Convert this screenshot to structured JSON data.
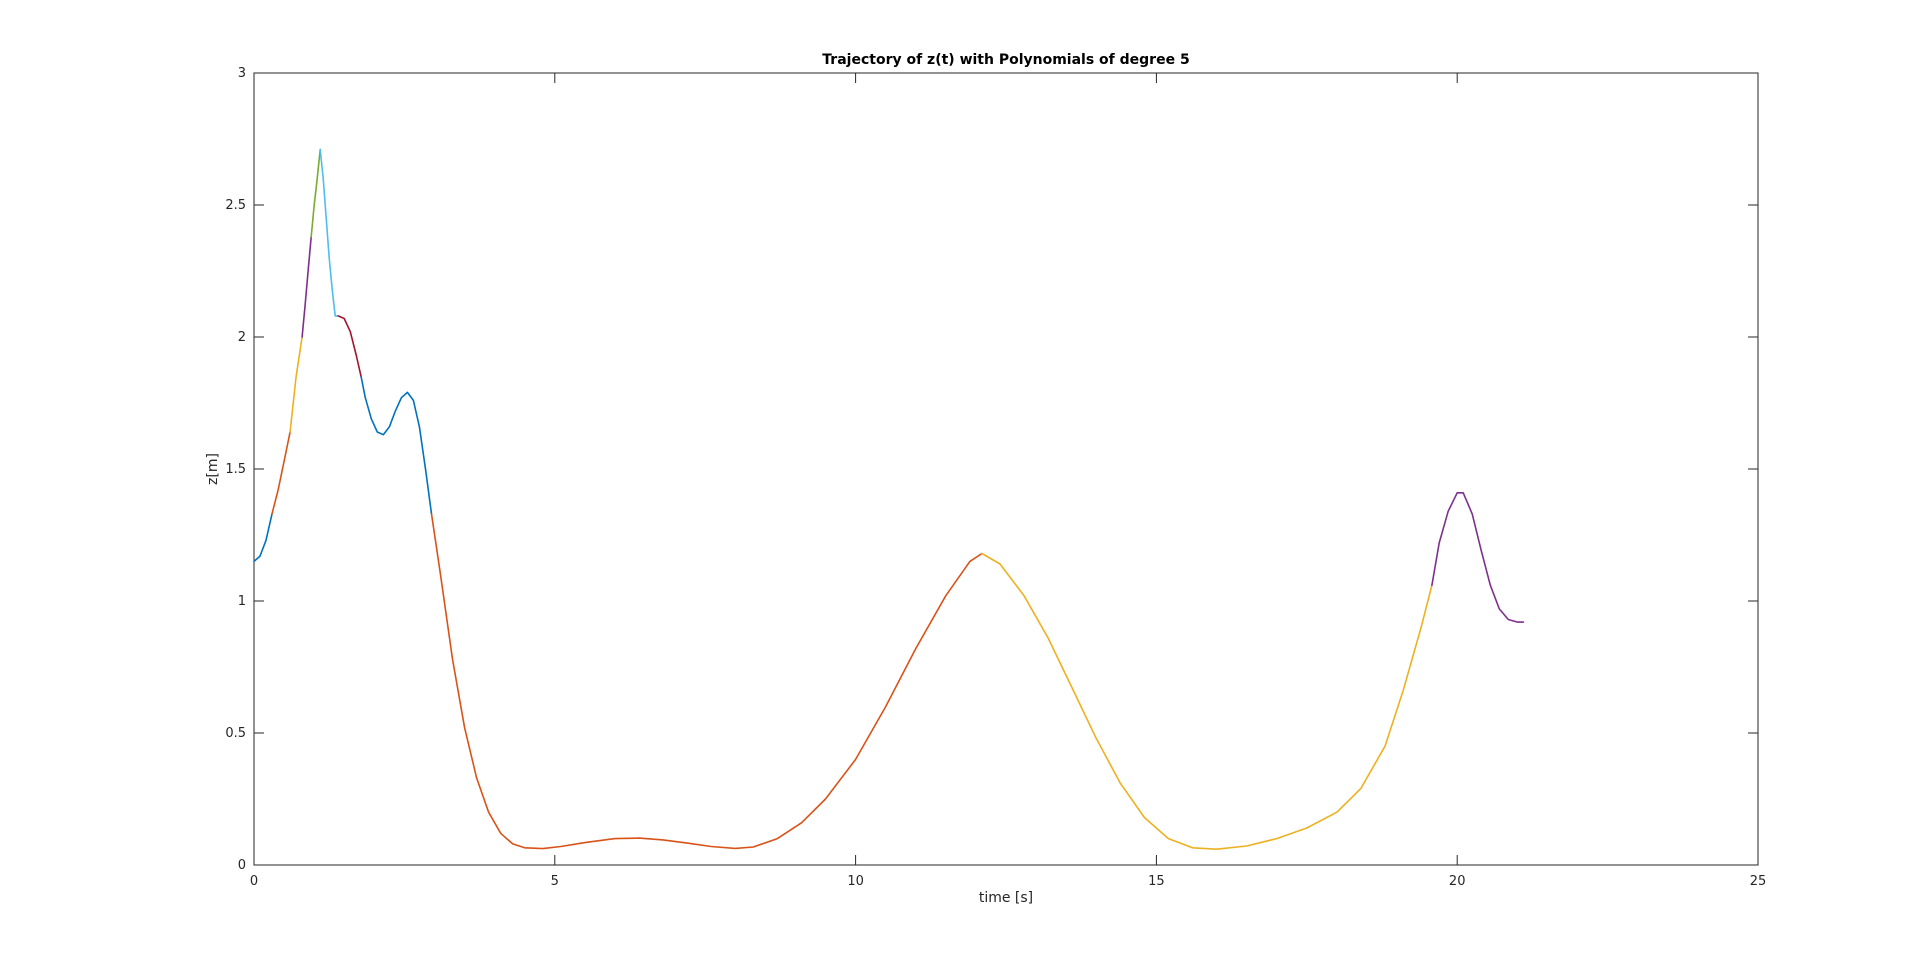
{
  "chart_data": {
    "type": "line",
    "title": "Trajectory of z(t) with Polynomials of degree 5",
    "xlabel": "time [s]",
    "ylabel": "z[m]",
    "xlim": [
      0,
      25
    ],
    "ylim": [
      0,
      3
    ],
    "xticks": [
      "0",
      "5",
      "10",
      "15",
      "20",
      "25"
    ],
    "yticks": [
      "0",
      "0.5",
      "1",
      "1.5",
      "2",
      "2.5",
      "3"
    ],
    "grid": false,
    "series": [
      {
        "color": "#0072BD",
        "points": [
          [
            0.0,
            1.15
          ],
          [
            0.1,
            1.17
          ],
          [
            0.2,
            1.23
          ],
          [
            0.3,
            1.33
          ]
        ]
      },
      {
        "color": "#D95319",
        "points": [
          [
            0.3,
            1.33
          ],
          [
            0.4,
            1.42
          ],
          [
            0.5,
            1.53
          ],
          [
            0.6,
            1.64
          ]
        ]
      },
      {
        "color": "#EDB120",
        "points": [
          [
            0.6,
            1.64
          ],
          [
            0.7,
            1.85
          ],
          [
            0.8,
            2.0
          ]
        ]
      },
      {
        "color": "#7E2F8E",
        "points": [
          [
            0.8,
            2.0
          ],
          [
            0.85,
            2.12
          ],
          [
            0.9,
            2.25
          ],
          [
            0.95,
            2.38
          ]
        ]
      },
      {
        "color": "#77AC30",
        "points": [
          [
            0.95,
            2.38
          ],
          [
            1.0,
            2.5
          ],
          [
            1.05,
            2.6
          ],
          [
            1.1,
            2.71
          ]
        ]
      },
      {
        "color": "#4DBEEE",
        "points": [
          [
            1.1,
            2.71
          ],
          [
            1.15,
            2.6
          ],
          [
            1.2,
            2.45
          ],
          [
            1.25,
            2.3
          ],
          [
            1.3,
            2.18
          ],
          [
            1.35,
            2.08
          ],
          [
            1.4,
            2.08
          ]
        ]
      },
      {
        "color": "#A2142F",
        "points": [
          [
            1.4,
            2.08
          ],
          [
            1.5,
            2.07
          ],
          [
            1.6,
            2.02
          ],
          [
            1.7,
            1.93
          ],
          [
            1.78,
            1.85
          ]
        ]
      },
      {
        "color": "#0072BD",
        "points": [
          [
            1.78,
            1.85
          ],
          [
            1.85,
            1.77
          ],
          [
            1.95,
            1.69
          ],
          [
            2.05,
            1.64
          ],
          [
            2.15,
            1.63
          ],
          [
            2.25,
            1.66
          ],
          [
            2.35,
            1.72
          ],
          [
            2.45,
            1.77
          ],
          [
            2.55,
            1.79
          ],
          [
            2.65,
            1.76
          ],
          [
            2.75,
            1.66
          ],
          [
            2.85,
            1.5
          ],
          [
            2.95,
            1.33
          ]
        ]
      },
      {
        "color": "#D95319",
        "points": [
          [
            2.95,
            1.33
          ],
          [
            3.1,
            1.1
          ],
          [
            3.3,
            0.78
          ],
          [
            3.5,
            0.52
          ],
          [
            3.7,
            0.33
          ],
          [
            3.9,
            0.2
          ],
          [
            4.1,
            0.12
          ],
          [
            4.3,
            0.08
          ],
          [
            4.5,
            0.065
          ],
          [
            4.8,
            0.062
          ],
          [
            5.1,
            0.07
          ],
          [
            5.5,
            0.085
          ],
          [
            6.0,
            0.1
          ],
          [
            6.4,
            0.102
          ],
          [
            6.8,
            0.095
          ],
          [
            7.2,
            0.083
          ],
          [
            7.6,
            0.07
          ],
          [
            8.0,
            0.063
          ],
          [
            8.3,
            0.068
          ],
          [
            8.7,
            0.1
          ],
          [
            9.1,
            0.16
          ],
          [
            9.5,
            0.25
          ],
          [
            10.0,
            0.4
          ],
          [
            10.5,
            0.6
          ],
          [
            11.0,
            0.82
          ],
          [
            11.5,
            1.02
          ],
          [
            11.9,
            1.15
          ],
          [
            12.1,
            1.18
          ]
        ]
      },
      {
        "color": "#EDB120",
        "points": [
          [
            12.1,
            1.18
          ],
          [
            12.4,
            1.14
          ],
          [
            12.8,
            1.02
          ],
          [
            13.2,
            0.86
          ],
          [
            13.6,
            0.67
          ],
          [
            14.0,
            0.48
          ],
          [
            14.4,
            0.31
          ],
          [
            14.8,
            0.18
          ],
          [
            15.2,
            0.1
          ],
          [
            15.6,
            0.065
          ],
          [
            16.0,
            0.06
          ],
          [
            16.5,
            0.072
          ],
          [
            17.0,
            0.1
          ],
          [
            17.5,
            0.14
          ],
          [
            18.0,
            0.2
          ],
          [
            18.4,
            0.29
          ],
          [
            18.8,
            0.45
          ],
          [
            19.1,
            0.66
          ],
          [
            19.4,
            0.9
          ],
          [
            19.58,
            1.06
          ]
        ]
      },
      {
        "color": "#7E2F8E",
        "points": [
          [
            19.58,
            1.06
          ],
          [
            19.7,
            1.22
          ],
          [
            19.85,
            1.34
          ],
          [
            20.0,
            1.41
          ],
          [
            20.1,
            1.41
          ],
          [
            20.25,
            1.33
          ],
          [
            20.4,
            1.19
          ],
          [
            20.55,
            1.06
          ],
          [
            20.7,
            0.97
          ],
          [
            20.85,
            0.93
          ],
          [
            21.0,
            0.92
          ],
          [
            21.1,
            0.92
          ]
        ]
      }
    ]
  }
}
